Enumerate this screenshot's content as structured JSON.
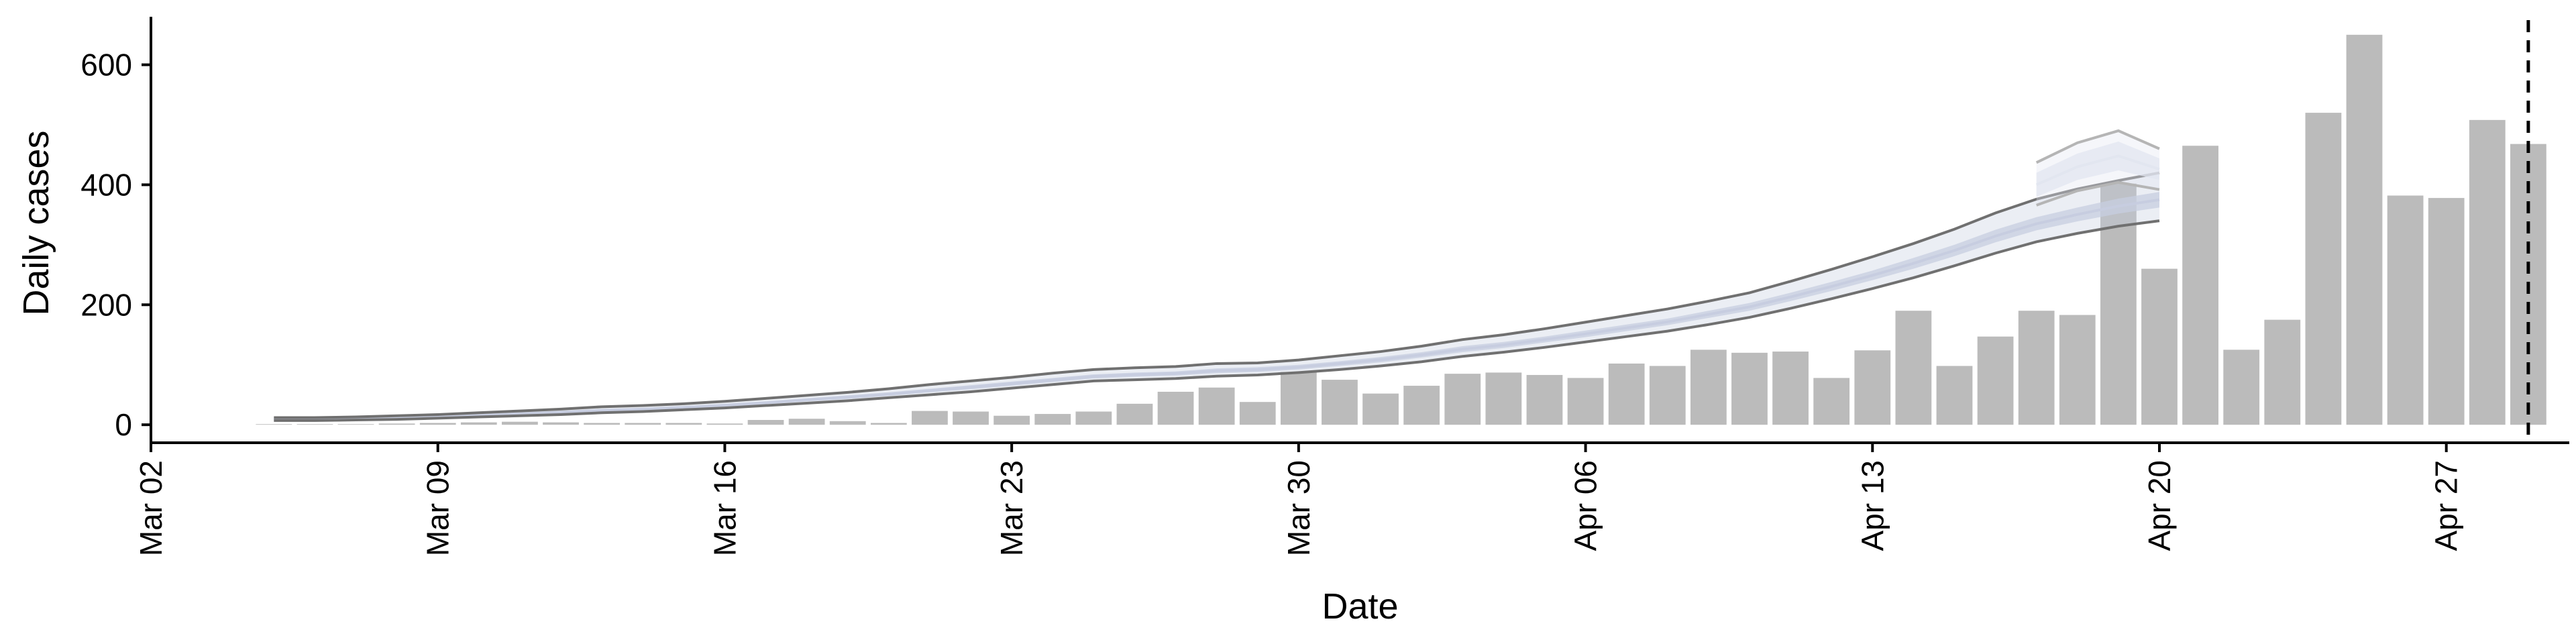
{
  "chart_data": {
    "type": "bar",
    "xlabel": "Date",
    "ylabel": "Daily cases",
    "ylim": [
      -30,
      680
    ],
    "xlim": [
      "2020-03-02",
      "2020-04-30"
    ],
    "x_ticks": [
      {
        "date": "2020-03-02",
        "label": "Mar 02"
      },
      {
        "date": "2020-03-09",
        "label": "Mar 09"
      },
      {
        "date": "2020-03-16",
        "label": "Mar 16"
      },
      {
        "date": "2020-03-23",
        "label": "Mar 23"
      },
      {
        "date": "2020-03-30",
        "label": "Mar 30"
      },
      {
        "date": "2020-04-06",
        "label": "Apr 06"
      },
      {
        "date": "2020-04-13",
        "label": "Apr 13"
      },
      {
        "date": "2020-04-20",
        "label": "Apr 20"
      },
      {
        "date": "2020-04-27",
        "label": "Apr 27"
      }
    ],
    "y_ticks": [
      0,
      200,
      400,
      600
    ],
    "bars": {
      "color": "#bbbbbb",
      "dates": [
        "2020-03-05",
        "2020-03-06",
        "2020-03-07",
        "2020-03-08",
        "2020-03-09",
        "2020-03-10",
        "2020-03-11",
        "2020-03-12",
        "2020-03-13",
        "2020-03-14",
        "2020-03-15",
        "2020-03-16",
        "2020-03-17",
        "2020-03-18",
        "2020-03-19",
        "2020-03-20",
        "2020-03-21",
        "2020-03-22",
        "2020-03-23",
        "2020-03-24",
        "2020-03-25",
        "2020-03-26",
        "2020-03-27",
        "2020-03-28",
        "2020-03-29",
        "2020-03-30",
        "2020-03-31",
        "2020-04-01",
        "2020-04-02",
        "2020-04-03",
        "2020-04-04",
        "2020-04-05",
        "2020-04-06",
        "2020-04-07",
        "2020-04-08",
        "2020-04-09",
        "2020-04-10",
        "2020-04-11",
        "2020-04-12",
        "2020-04-13",
        "2020-04-14",
        "2020-04-15",
        "2020-04-16",
        "2020-04-17",
        "2020-04-18",
        "2020-04-19",
        "2020-04-20",
        "2020-04-21",
        "2020-04-22",
        "2020-04-23",
        "2020-04-24",
        "2020-04-25",
        "2020-04-26",
        "2020-04-27",
        "2020-04-28",
        "2020-04-29"
      ],
      "values": [
        1,
        1,
        1,
        2,
        3,
        4,
        5,
        4,
        3,
        3,
        3,
        2,
        8,
        10,
        6,
        3,
        23,
        22,
        15,
        18,
        22,
        35,
        55,
        62,
        38,
        88,
        75,
        52,
        65,
        85,
        87,
        83,
        78,
        102,
        98,
        125,
        120,
        122,
        78,
        124,
        190,
        98,
        147,
        190,
        183,
        402,
        260,
        465,
        125,
        175,
        520,
        650,
        382,
        378,
        508,
        468
      ]
    },
    "forecast": {
      "band_color": "#c7cde0",
      "line_color": "#707070",
      "dates": [
        "2020-03-05",
        "2020-03-06",
        "2020-03-07",
        "2020-03-08",
        "2020-03-09",
        "2020-03-10",
        "2020-03-11",
        "2020-03-12",
        "2020-03-13",
        "2020-03-14",
        "2020-03-15",
        "2020-03-16",
        "2020-03-17",
        "2020-03-18",
        "2020-03-19",
        "2020-03-20",
        "2020-03-21",
        "2020-03-22",
        "2020-03-23",
        "2020-03-24",
        "2020-03-25",
        "2020-03-26",
        "2020-03-27",
        "2020-03-28",
        "2020-03-29",
        "2020-03-30",
        "2020-03-31",
        "2020-04-01",
        "2020-04-02",
        "2020-04-03",
        "2020-04-04",
        "2020-04-05",
        "2020-04-06",
        "2020-04-07",
        "2020-04-08",
        "2020-04-09",
        "2020-04-10",
        "2020-04-11",
        "2020-04-12",
        "2020-04-13",
        "2020-04-14",
        "2020-04-15",
        "2020-04-16",
        "2020-04-17",
        "2020-04-18",
        "2020-04-19",
        "2020-04-20"
      ],
      "upper_90": [
        12,
        12,
        13,
        15,
        17,
        20,
        23,
        26,
        30,
        32,
        35,
        39,
        44,
        49,
        54,
        60,
        67,
        73,
        79,
        86,
        92,
        95,
        97,
        102,
        103,
        108,
        115,
        122,
        131,
        142,
        150,
        160,
        171,
        182,
        193,
        206,
        220,
        239,
        259,
        280,
        302,
        326,
        353,
        376,
        393,
        407,
        420
      ],
      "upper_50": [
        11,
        11,
        12,
        13,
        15,
        17,
        20,
        23,
        26,
        28,
        31,
        35,
        39,
        44,
        49,
        54,
        60,
        66,
        72,
        78,
        84,
        87,
        89,
        94,
        96,
        100,
        106,
        113,
        121,
        131,
        138,
        147,
        157,
        167,
        177,
        190,
        203,
        220,
        238,
        257,
        278,
        300,
        325,
        346,
        362,
        377,
        388
      ],
      "lower_50": [
        8,
        8,
        9,
        10,
        12,
        14,
        17,
        19,
        22,
        24,
        27,
        30,
        34,
        39,
        43,
        48,
        54,
        59,
        65,
        71,
        77,
        80,
        82,
        86,
        88,
        92,
        98,
        104,
        112,
        121,
        128,
        137,
        146,
        156,
        166,
        178,
        190,
        206,
        223,
        241,
        260,
        281,
        304,
        324,
        339,
        352,
        362
      ],
      "lower_90": [
        7,
        7,
        8,
        9,
        11,
        13,
        15,
        17,
        20,
        22,
        25,
        28,
        32,
        36,
        40,
        45,
        50,
        55,
        61,
        67,
        73,
        75,
        77,
        81,
        83,
        87,
        92,
        98,
        105,
        114,
        121,
        129,
        138,
        147,
        156,
        167,
        179,
        194,
        210,
        227,
        245,
        265,
        286,
        305,
        319,
        331,
        340
      ],
      "center": [
        9.5,
        9.5,
        10.5,
        11.5,
        13.5,
        15.5,
        18.5,
        21,
        24,
        26,
        29,
        32.5,
        36.5,
        41.5,
        46,
        51,
        57,
        62.5,
        68.5,
        74.5,
        80.5,
        83.5,
        85.5,
        90,
        92,
        96,
        102,
        108.5,
        116.5,
        126,
        133,
        142,
        151.5,
        161.5,
        171.5,
        184,
        196.5,
        213,
        230.5,
        249,
        269,
        290.5,
        314.5,
        335,
        350.5,
        364.5,
        375
      ]
    },
    "projection": {
      "band_color": "#e2e6f0",
      "line_color": "#b5b5b5",
      "dates": [
        "2020-04-17",
        "2020-04-18",
        "2020-04-19",
        "2020-04-20"
      ],
      "upper_90": [
        437,
        470,
        490,
        460
      ],
      "upper_50": [
        420,
        452,
        472,
        444
      ],
      "lower_50": [
        380,
        408,
        424,
        408
      ],
      "lower_90": [
        366,
        390,
        404,
        392
      ],
      "center": [
        400,
        430,
        448,
        426
      ]
    },
    "cutoff_date": "2020-04-29",
    "axes": {
      "grid": false
    }
  }
}
